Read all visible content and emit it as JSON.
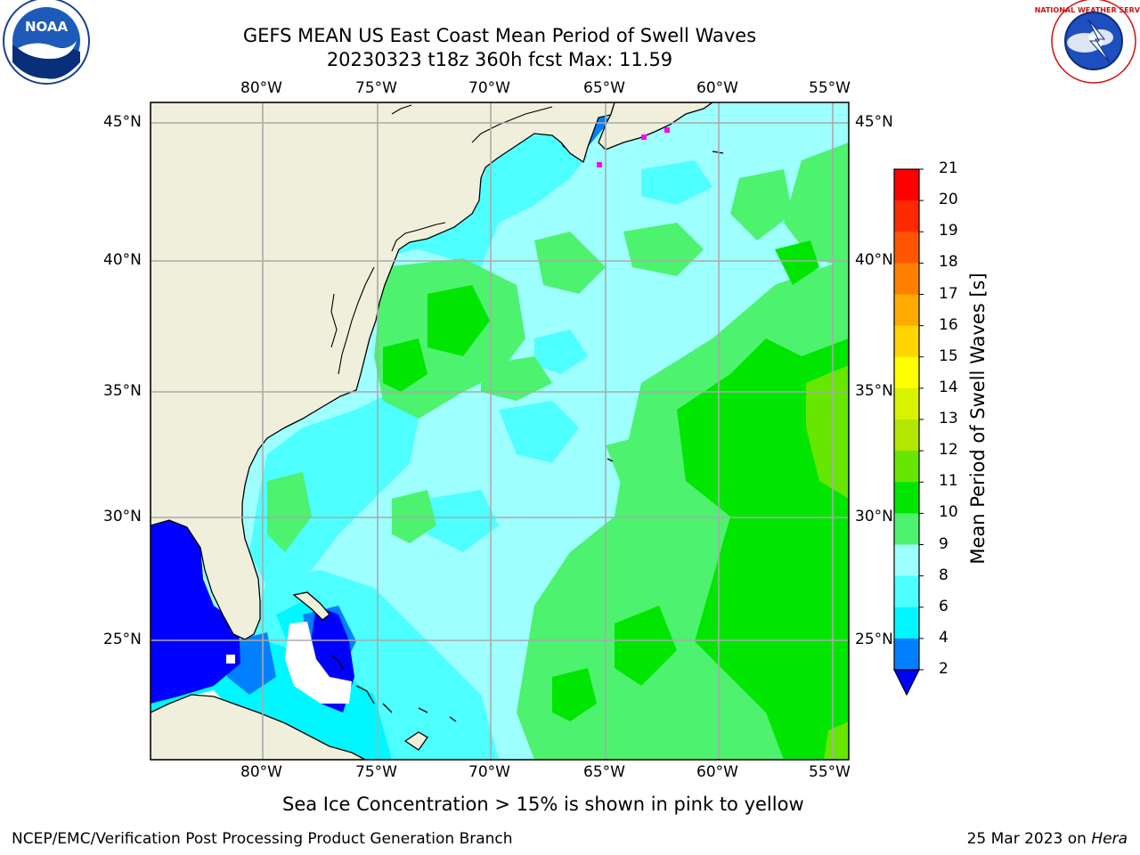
{
  "header": {
    "title_line1": "GEFS MEAN US East Coast Mean Period of Swell Waves",
    "title_line2": "20230323 t18z 360h fcst   Max: 11.59"
  },
  "logos": {
    "noaa": {
      "text": "NOAA",
      "icon": "noaa-logo-icon"
    },
    "nws": {
      "text": "NATIONAL WEATHER SERVICE",
      "icon": "nws-logo-icon"
    }
  },
  "axes": {
    "lon_labels": [
      "80°W",
      "75°W",
      "70°W",
      "65°W",
      "60°W",
      "55°W"
    ],
    "lat_labels": [
      "45°N",
      "40°N",
      "35°N",
      "30°N",
      "25°N"
    ]
  },
  "colorbar": {
    "label": "Mean Period of Swell Waves [s]",
    "ticks": [
      "21",
      "20",
      "19",
      "18",
      "17",
      "16",
      "15",
      "14",
      "13",
      "12",
      "11",
      "10",
      "9",
      "8",
      "6",
      "4",
      "2"
    ],
    "colors": [
      "#ff0000",
      "#ff2a00",
      "#ff5500",
      "#ff8000",
      "#ffaa00",
      "#ffd500",
      "#ffff00",
      "#d9f200",
      "#b3e600",
      "#66e600",
      "#00e600",
      "#4df26e",
      "#9effff",
      "#4dffff",
      "#00f7ff",
      "#0080ff",
      "#0000ff"
    ]
  },
  "notes": {
    "ice_note": "Sea Ice Concentration > 15% is shown in pink to yellow",
    "credit": "NCEP/EMC/Verification Post Processing Product Generation Branch",
    "date": "25 Mar 2023 on ",
    "machine": "Hera"
  },
  "map_data": {
    "variable": "Mean Period of Swell Waves",
    "units": "s",
    "max_value": 11.59,
    "lon_range": [
      "85°W",
      "54°W"
    ],
    "lat_range": [
      "20°N",
      "46°N"
    ]
  }
}
